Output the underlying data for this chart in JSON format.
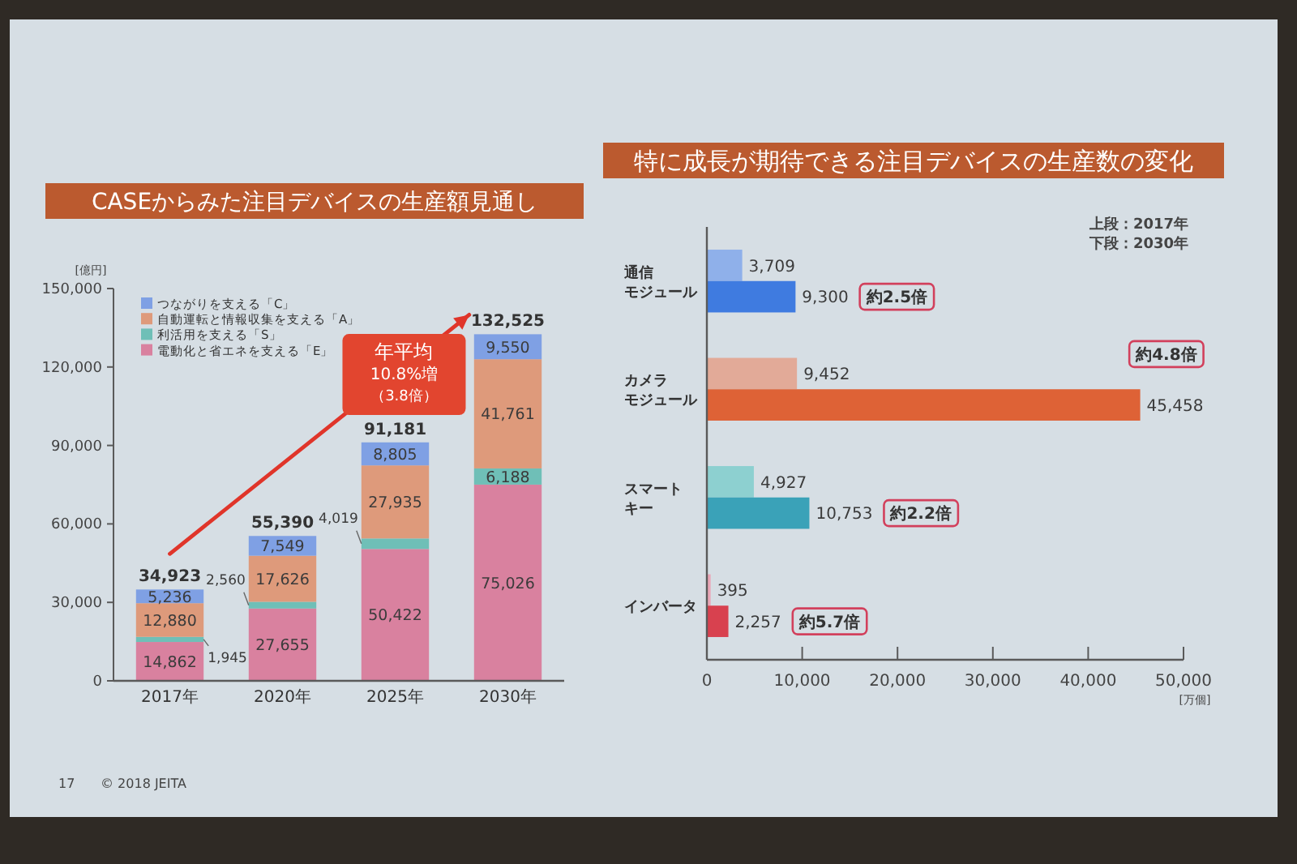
{
  "chart_data": [
    {
      "type": "bar",
      "title": "CASEからみた注目デバイスの生産額見通し",
      "ylabel": "[億円]",
      "categories": [
        "2017年",
        "2020年",
        "2025年",
        "2030年"
      ],
      "stacked": true,
      "series": [
        {
          "name": "電動化と省エネを支える「E」",
          "color": "#d9819f",
          "values": [
            14862,
            27655,
            50422,
            75026
          ],
          "value_labels": [
            "14,862",
            "27,655",
            "50,422",
            "75,026"
          ]
        },
        {
          "name": "利活用を支える「S」",
          "color": "#6fbfb7",
          "values": [
            1945,
            2560,
            4019,
            6188
          ],
          "value_labels": [
            "1,945",
            "2,560",
            "4,019",
            "6,188"
          ]
        },
        {
          "name": "自動運転と情報収集を支える「A」",
          "color": "#de9a7b",
          "values": [
            12880,
            17626,
            27935,
            41761
          ],
          "value_labels": [
            "12,880",
            "17,626",
            "27,935",
            "41,761"
          ]
        },
        {
          "name": "つながりを支える「C」",
          "color": "#7fa0e4",
          "values": [
            5236,
            7549,
            8805,
            9550
          ],
          "value_labels": [
            "5,236",
            "7,549",
            "8,805",
            "9,550"
          ]
        }
      ],
      "ylim": [
        0,
        150000
      ],
      "yticks": [
        0,
        {
          "value": 30000,
          "label": "30,000"
        },
        {
          "value": 60000,
          "label": "60,000"
        },
        {
          "value": 90000,
          "label": "90,000"
        },
        {
          "value": 120000,
          "label": "120,000"
        },
        {
          "value": 150000,
          "label": "150,000"
        }
      ],
      "totals": [
        "34,923",
        "55,390",
        "91,181",
        "132,525"
      ],
      "legend": "top left",
      "annotations": [
        "年平均",
        "10.8%増",
        "（3.8倍）",
        "17",
        "© 2018 JEITA"
      ]
    },
    {
      "type": "bar",
      "orientation": "horizontal",
      "title": "特に成長が期待できる注目デバイスの生産数の変化",
      "xlabel": "[万個]",
      "categories": [
        "通信モジュール",
        "カメラモジュール",
        "スマートキー",
        "インバータ"
      ],
      "series": [
        {
          "colors": [
            "#8fb0ea",
            "#e2aa98",
            "#8dd0d0",
            "#eaa6b6"
          ],
          "values": [
            3709,
            9452,
            4927,
            395
          ],
          "value_labels": [
            "3,709",
            "9,452",
            "4,927",
            "395"
          ]
        },
        {
          "colors": [
            "#3f7be0",
            "#de6236",
            "#3aa2b8",
            "#d8414f"
          ],
          "values": [
            9300,
            45458,
            10753,
            2257
          ],
          "value_labels": [
            "9,300",
            "45,458",
            "10,753",
            "2,257"
          ]
        }
      ],
      "xlim": [
        0,
        50000
      ],
      "xticks": [
        0,
        {
          "value": 10000,
          "label": "10,000"
        },
        {
          "value": 20000,
          "label": "20,000"
        },
        {
          "value": 30000,
          "label": "30,000"
        },
        {
          "value": 40000,
          "label": "40,000"
        },
        {
          "value": 50000,
          "label": "50,000"
        }
      ],
      "annotations": [
        "上段：2017年",
        "下段：2030年",
        "約2.5倍",
        "約4.8倍",
        "約2.2倍",
        "約5.7倍"
      ]
    }
  ]
}
